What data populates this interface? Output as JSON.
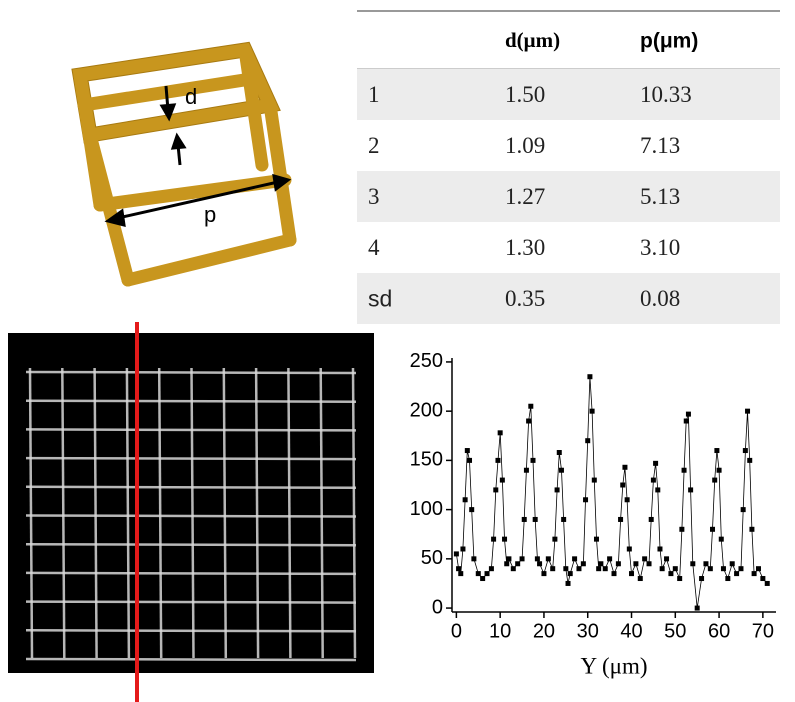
{
  "diagram": {
    "labels": [
      "d",
      "p"
    ]
  },
  "table": {
    "header": [
      "d(μm)",
      "p(μm)"
    ],
    "rows": [
      [
        "1",
        "1.50",
        "10.33"
      ],
      [
        "2",
        "1.09",
        "7.13"
      ],
      [
        "3",
        "1.27",
        "5.13"
      ],
      [
        "4",
        "1.30",
        "3.10"
      ],
      [
        "sd",
        "0.35",
        "0.08"
      ]
    ]
  },
  "chart_data": {
    "type": "scatter",
    "x_label": "Y (μm)",
    "xlim": [
      -1,
      73
    ],
    "ylim": [
      -4,
      254
    ],
    "xticks": [
      0,
      10,
      20,
      30,
      40,
      50,
      60,
      70
    ],
    "yticks": [
      0,
      50,
      100,
      150,
      200,
      250
    ],
    "series": [
      {
        "color": "#000000",
        "x": [
          0,
          0.5,
          1,
          1.5,
          2,
          2.5,
          3,
          3.5,
          4,
          5,
          6,
          7,
          8,
          8.5,
          9,
          9.5,
          10,
          10.5,
          11,
          11.5,
          12,
          13,
          14,
          15,
          15.5,
          16,
          16.5,
          17,
          17.5,
          18,
          18.5,
          19,
          20,
          21,
          22,
          22.5,
          23,
          23.5,
          24,
          24.5,
          25,
          25.5,
          26,
          27,
          28,
          29,
          29.5,
          30,
          30.5,
          31,
          31.5,
          32,
          32.5,
          33,
          34,
          35,
          36,
          37,
          37.5,
          38,
          38.5,
          39,
          39.5,
          40,
          41,
          42,
          43,
          44,
          44.5,
          45,
          45.5,
          46,
          46.5,
          47,
          48,
          49,
          50,
          51,
          51.5,
          52,
          52.5,
          53,
          53.5,
          54,
          55,
          56,
          57,
          58,
          58.5,
          59,
          59.5,
          60,
          60.5,
          61,
          62,
          63,
          64,
          65,
          65.5,
          66,
          66.5,
          67,
          67.5,
          68,
          69,
          70,
          71
        ],
        "values": [
          55,
          40,
          35,
          60,
          110,
          160,
          150,
          100,
          50,
          35,
          30,
          35,
          40,
          70,
          120,
          150,
          178,
          130,
          70,
          45,
          50,
          40,
          45,
          50,
          90,
          140,
          190,
          205,
          150,
          90,
          50,
          45,
          35,
          50,
          40,
          70,
          120,
          158,
          140,
          90,
          40,
          25,
          35,
          50,
          40,
          45,
          110,
          170,
          235,
          200,
          130,
          70,
          40,
          45,
          40,
          50,
          35,
          45,
          90,
          125,
          143,
          110,
          60,
          35,
          45,
          30,
          50,
          45,
          90,
          130,
          147,
          120,
          60,
          40,
          50,
          35,
          40,
          30,
          80,
          140,
          190,
          197,
          120,
          45,
          0,
          30,
          45,
          40,
          80,
          130,
          160,
          140,
          70,
          40,
          30,
          45,
          35,
          40,
          100,
          160,
          200,
          150,
          80,
          35,
          40,
          30,
          25
        ]
      }
    ]
  }
}
